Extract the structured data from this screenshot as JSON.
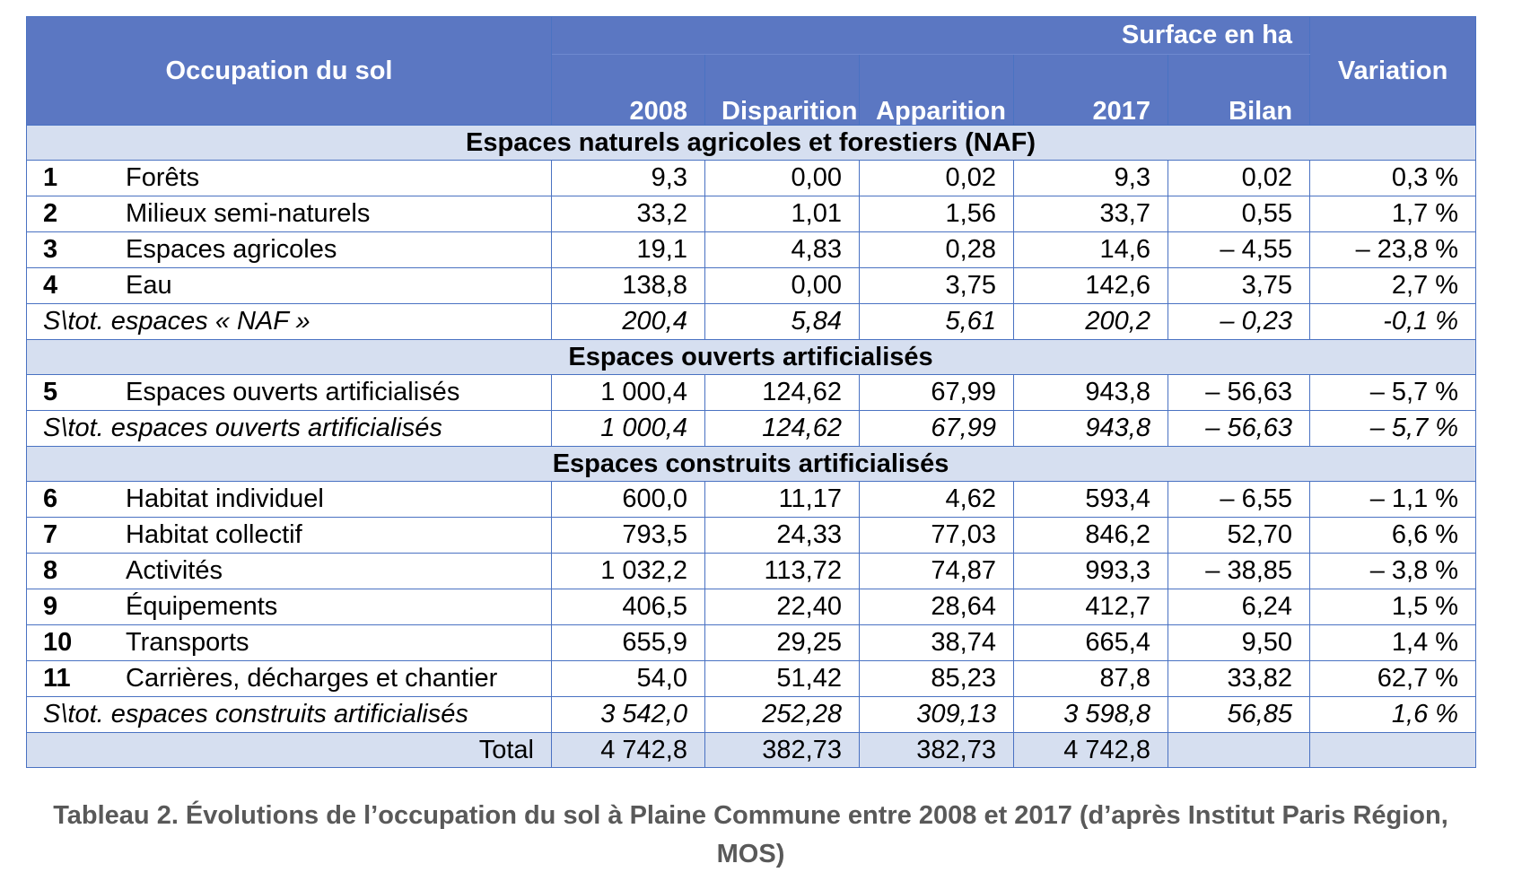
{
  "header": {
    "occupation": "Occupation du sol",
    "surface_group": "Surface en ha",
    "variation": "Variation",
    "col_2008": "2008",
    "col_disparition": "Disparition",
    "col_apparition": "Apparition",
    "col_2017": "2017",
    "col_bilan": "Bilan"
  },
  "sections": [
    {
      "title": "Espaces naturels agricoles et forestiers (NAF)",
      "rows": [
        {
          "num": "1",
          "label": "Forêts",
          "y2008": "9,3",
          "disparition": "0,00",
          "apparition": "0,02",
          "y2017": "9,3",
          "bilan": "0,02",
          "variation": "0,3 %"
        },
        {
          "num": "2",
          "label": "Milieux semi-naturels",
          "y2008": "33,2",
          "disparition": "1,01",
          "apparition": "1,56",
          "y2017": "33,7",
          "bilan": "0,55",
          "variation": "1,7 %"
        },
        {
          "num": "3",
          "label": "Espaces agricoles",
          "y2008": "19,1",
          "disparition": "4,83",
          "apparition": "0,28",
          "y2017": "14,6",
          "bilan": "– 4,55",
          "variation": "– 23,8 %"
        },
        {
          "num": "4",
          "label": "Eau",
          "y2008": "138,8",
          "disparition": "0,00",
          "apparition": "3,75",
          "y2017": "142,6",
          "bilan": "3,75",
          "variation": "2,7 %"
        }
      ],
      "subtotal": {
        "label": "S\\tot. espaces « NAF »",
        "y2008": "200,4",
        "disparition": "5,84",
        "apparition": "5,61",
        "y2017": "200,2",
        "bilan": "– 0,23",
        "variation": "-0,1 %"
      }
    },
    {
      "title": "Espaces ouverts artificialisés",
      "rows": [
        {
          "num": "5",
          "label": "Espaces ouverts artificialisés",
          "y2008": "1 000,4",
          "disparition": "124,62",
          "apparition": "67,99",
          "y2017": "943,8",
          "bilan": "– 56,63",
          "variation": "– 5,7 %"
        }
      ],
      "subtotal": {
        "label": "S\\tot. espaces ouverts artificialisés",
        "y2008": "1 000,4",
        "disparition": "124,62",
        "apparition": "67,99",
        "y2017": "943,8",
        "bilan": "– 56,63",
        "variation": "– 5,7 %"
      }
    },
    {
      "title": "Espaces construits artificialisés",
      "rows": [
        {
          "num": "6",
          "label": "Habitat individuel",
          "y2008": "600,0",
          "disparition": "11,17",
          "apparition": "4,62",
          "y2017": "593,4",
          "bilan": "– 6,55",
          "variation": "– 1,1 %"
        },
        {
          "num": "7",
          "label": "Habitat collectif",
          "y2008": "793,5",
          "disparition": "24,33",
          "apparition": "77,03",
          "y2017": "846,2",
          "bilan": "52,70",
          "variation": "6,6 %"
        },
        {
          "num": "8",
          "label": "Activités",
          "y2008": "1 032,2",
          "disparition": "113,72",
          "apparition": "74,87",
          "y2017": "993,3",
          "bilan": "– 38,85",
          "variation": "– 3,8 %"
        },
        {
          "num": "9",
          "label": "Équipements",
          "y2008": "406,5",
          "disparition": "22,40",
          "apparition": "28,64",
          "y2017": "412,7",
          "bilan": "6,24",
          "variation": "1,5 %"
        },
        {
          "num": "10",
          "label": "Transports",
          "y2008": "655,9",
          "disparition": "29,25",
          "apparition": "38,74",
          "y2017": "665,4",
          "bilan": "9,50",
          "variation": "1,4 %"
        },
        {
          "num": "11",
          "label": "Carrières, décharges et chantier",
          "y2008": "54,0",
          "disparition": "51,42",
          "apparition": "85,23",
          "y2017": "87,8",
          "bilan": "33,82",
          "variation": "62,7 %"
        }
      ],
      "subtotal": {
        "label": "S\\tot. espaces construits artificialisés",
        "y2008": "3 542,0",
        "disparition": "252,28",
        "apparition": "309,13",
        "y2017": "3 598,8",
        "bilan": "56,85",
        "variation": "1,6 %"
      }
    }
  ],
  "total": {
    "label": "Total",
    "y2008": "4 742,8",
    "disparition": "382,73",
    "apparition": "382,73",
    "y2017": "4 742,8",
    "bilan": "",
    "variation": ""
  },
  "caption": "Tableau 2. Évolutions de l’occupation du sol à Plaine Commune entre 2008 et 2017 (d’après Institut Paris Région, MOS)"
}
